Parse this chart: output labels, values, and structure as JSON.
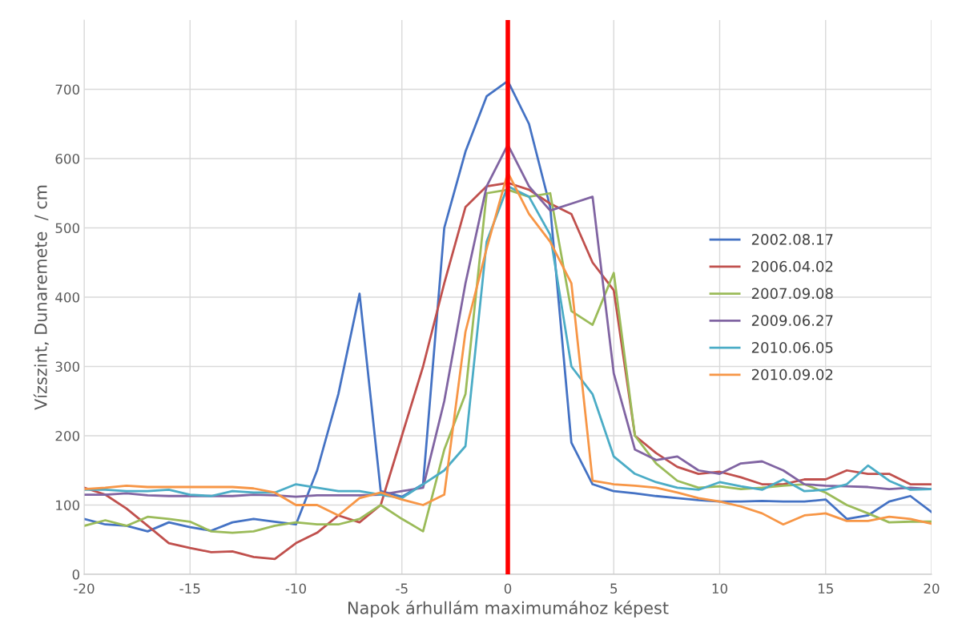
{
  "chart_data": {
    "type": "line",
    "xlabel": "Napok árhullám maximumához képest",
    "ylabel": "Vízszint, Dunaremete  / cm",
    "x": [
      -20,
      -19,
      -18,
      -17,
      -16,
      -15,
      -14,
      -13,
      -12,
      -11,
      -10,
      -9,
      -8,
      -7,
      -6,
      -5,
      -4,
      -3,
      -2,
      -1,
      0,
      1,
      2,
      3,
      4,
      5,
      6,
      7,
      8,
      9,
      10,
      11,
      12,
      13,
      14,
      15,
      16,
      17,
      18,
      19,
      20
    ],
    "series": [
      {
        "name": "2002.08.17",
        "color": "#4472c4",
        "values": [
          80,
          72,
          70,
          62,
          75,
          68,
          63,
          75,
          80,
          76,
          72,
          150,
          260,
          405,
          120,
          112,
          130,
          500,
          610,
          690,
          712,
          650,
          530,
          190,
          130,
          120,
          117,
          113,
          110,
          107,
          105,
          105,
          106,
          105,
          105,
          108,
          80,
          85,
          105,
          113,
          90
        ]
      },
      {
        "name": "2006.04.02",
        "color": "#c0504d",
        "values": [
          125,
          115,
          95,
          70,
          45,
          38,
          32,
          33,
          25,
          22,
          45,
          60,
          85,
          75,
          100,
          200,
          300,
          420,
          530,
          560,
          565,
          555,
          535,
          520,
          450,
          410,
          200,
          175,
          155,
          145,
          148,
          140,
          130,
          130,
          137,
          137,
          150,
          145,
          145,
          130,
          130
        ]
      },
      {
        "name": "2007.09.08",
        "color": "#9bbb59",
        "values": [
          70,
          78,
          70,
          83,
          80,
          76,
          62,
          60,
          62,
          70,
          75,
          72,
          72,
          80,
          100,
          80,
          62,
          180,
          260,
          550,
          555,
          545,
          550,
          380,
          360,
          435,
          200,
          160,
          135,
          125,
          127,
          123,
          125,
          128,
          130,
          118,
          100,
          88,
          75,
          76,
          76
        ]
      },
      {
        "name": "2009.06.27",
        "color": "#8064a2",
        "values": [
          115,
          115,
          117,
          114,
          113,
          113,
          113,
          113,
          115,
          114,
          112,
          114,
          114,
          114,
          115,
          120,
          125,
          250,
          420,
          560,
          620,
          560,
          525,
          535,
          545,
          290,
          180,
          165,
          170,
          150,
          145,
          160,
          163,
          150,
          130,
          128,
          127,
          126,
          123,
          125,
          123
        ]
      },
      {
        "name": "2010.06.05",
        "color": "#4bacc6",
        "values": [
          122,
          122,
          120,
          120,
          122,
          115,
          113,
          120,
          118,
          118,
          130,
          125,
          120,
          120,
          115,
          110,
          130,
          150,
          185,
          480,
          560,
          545,
          490,
          300,
          260,
          170,
          145,
          133,
          125,
          122,
          133,
          127,
          122,
          137,
          120,
          122,
          130,
          157,
          135,
          122,
          123
        ]
      },
      {
        "name": "2010.09.02",
        "color": "#f79646",
        "values": [
          123,
          125,
          128,
          126,
          126,
          126,
          126,
          126,
          124,
          118,
          100,
          100,
          85,
          110,
          118,
          108,
          100,
          115,
          350,
          470,
          580,
          520,
          480,
          420,
          135,
          130,
          128,
          125,
          118,
          110,
          105,
          98,
          88,
          72,
          85,
          88,
          77,
          77,
          83,
          80,
          73
        ]
      }
    ],
    "xlim": [
      -20,
      20
    ],
    "xticks": [
      -20,
      -15,
      -10,
      -5,
      0,
      5,
      10,
      15,
      20
    ],
    "ylim": [
      0,
      800
    ],
    "yticks": [
      0,
      100,
      200,
      300,
      400,
      500,
      600,
      700
    ],
    "ref_lines": [
      {
        "axis": "x",
        "value": 0,
        "color": "#ff0000"
      }
    ],
    "grid": true,
    "legend": "right",
    "marker": "none",
    "line_style": "solid"
  }
}
